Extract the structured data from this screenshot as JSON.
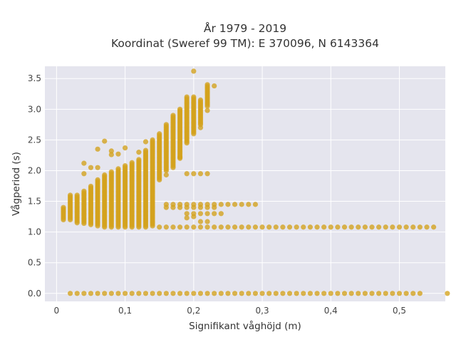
{
  "chart_data": {
    "type": "scatter",
    "title": "År 1979 - 2019",
    "subtitle": "Koordinat (Sweref 99 TM): E 370096, N 6143364",
    "xlabel": "Signifikant våghöjd (m)",
    "ylabel": "Vågperiod (s)",
    "xlim": [
      -0.017,
      0.567
    ],
    "ylim": [
      -0.13,
      3.7
    ],
    "x_ticks": [
      0,
      0.1,
      0.2,
      0.3,
      0.4,
      0.5
    ],
    "x_tick_labels": [
      "0",
      "0,1",
      "0,2",
      "0,3",
      "0,4",
      "0,5"
    ],
    "y_ticks": [
      0,
      0.5,
      1,
      1.5,
      2,
      2.5,
      3,
      3.5
    ],
    "y_tick_labels": [
      "0.0",
      "0.5",
      "1.0",
      "1.5",
      "2.0",
      "2.5",
      "3.0",
      "3.5"
    ],
    "grid": true,
    "legend": "none",
    "colors": {
      "marker": "#d4a21b",
      "plot_background": "#e5e5ee",
      "grid": "#ffffff"
    },
    "series": [
      {
        "bands": [
          {
            "x_from": 0.02,
            "x_to": 0.53,
            "x_step": 0.01,
            "y": 0.0
          },
          {
            "x_from": 0.15,
            "x_to": 0.54,
            "x_step": 0.01,
            "y": 1.08
          },
          {
            "x_from": 0.16,
            "x_to": 0.29,
            "x_step": 0.01,
            "y": 1.45
          },
          {
            "x_from": 0.16,
            "x_to": 0.23,
            "x_step": 0.01,
            "y": 1.4
          }
        ],
        "columns": [
          {
            "x": 0.01,
            "y_min": 1.2,
            "y_max": 1.4
          },
          {
            "x": 0.02,
            "y_min": 1.2,
            "y_max": 1.6
          },
          {
            "x": 0.03,
            "y_min": 1.15,
            "y_max": 1.62
          },
          {
            "x": 0.04,
            "y_min": 1.14,
            "y_max": 1.68
          },
          {
            "x": 0.05,
            "y_min": 1.12,
            "y_max": 1.75
          },
          {
            "x": 0.06,
            "y_min": 1.1,
            "y_max": 1.85
          },
          {
            "x": 0.07,
            "y_min": 1.08,
            "y_max": 1.95
          },
          {
            "x": 0.08,
            "y_min": 1.08,
            "y_max": 2.0
          },
          {
            "x": 0.09,
            "y_min": 1.08,
            "y_max": 2.05
          },
          {
            "x": 0.1,
            "y_min": 1.08,
            "y_max": 2.1
          },
          {
            "x": 0.11,
            "y_min": 1.08,
            "y_max": 2.15
          },
          {
            "x": 0.12,
            "y_min": 1.08,
            "y_max": 2.2
          },
          {
            "x": 0.13,
            "y_min": 1.08,
            "y_max": 2.35
          },
          {
            "x": 0.14,
            "y_min": 1.1,
            "y_max": 2.5
          },
          {
            "x": 0.15,
            "y_min": 1.85,
            "y_max": 2.6
          },
          {
            "x": 0.16,
            "y_min": 2.0,
            "y_max": 2.75
          },
          {
            "x": 0.17,
            "y_min": 2.05,
            "y_max": 2.9
          },
          {
            "x": 0.18,
            "y_min": 2.2,
            "y_max": 3.0
          },
          {
            "x": 0.19,
            "y_min": 2.45,
            "y_max": 3.2
          },
          {
            "x": 0.2,
            "y_min": 2.6,
            "y_max": 3.2
          },
          {
            "x": 0.21,
            "y_min": 2.75,
            "y_max": 3.15
          },
          {
            "x": 0.22,
            "y_min": 3.05,
            "y_max": 3.4
          }
        ],
        "points": [
          {
            "x": 0.07,
            "y": 2.48
          },
          {
            "x": 0.06,
            "y": 2.35
          },
          {
            "x": 0.08,
            "y": 2.32
          },
          {
            "x": 0.1,
            "y": 2.37
          },
          {
            "x": 0.04,
            "y": 2.12
          },
          {
            "x": 0.04,
            "y": 1.95
          },
          {
            "x": 0.05,
            "y": 2.05
          },
          {
            "x": 0.06,
            "y": 2.05
          },
          {
            "x": 0.08,
            "y": 2.26
          },
          {
            "x": 0.09,
            "y": 2.27
          },
          {
            "x": 0.12,
            "y": 2.3
          },
          {
            "x": 0.13,
            "y": 2.47
          },
          {
            "x": 0.2,
            "y": 3.62
          },
          {
            "x": 0.23,
            "y": 3.38
          },
          {
            "x": 0.22,
            "y": 2.98
          },
          {
            "x": 0.21,
            "y": 2.7
          },
          {
            "x": 0.18,
            "y": 2.22
          },
          {
            "x": 0.16,
            "y": 1.93
          },
          {
            "x": 0.19,
            "y": 1.95
          },
          {
            "x": 0.2,
            "y": 1.95
          },
          {
            "x": 0.21,
            "y": 1.95
          },
          {
            "x": 0.22,
            "y": 1.95
          },
          {
            "x": 0.19,
            "y": 1.3
          },
          {
            "x": 0.2,
            "y": 1.3
          },
          {
            "x": 0.21,
            "y": 1.3
          },
          {
            "x": 0.22,
            "y": 1.3
          },
          {
            "x": 0.23,
            "y": 1.3
          },
          {
            "x": 0.24,
            "y": 1.3
          },
          {
            "x": 0.19,
            "y": 1.23
          },
          {
            "x": 0.2,
            "y": 1.25
          },
          {
            "x": 0.21,
            "y": 1.17
          },
          {
            "x": 0.22,
            "y": 1.17
          },
          {
            "x": 0.57,
            "y": 0.0
          },
          {
            "x": 0.55,
            "y": 1.08
          }
        ]
      }
    ]
  }
}
